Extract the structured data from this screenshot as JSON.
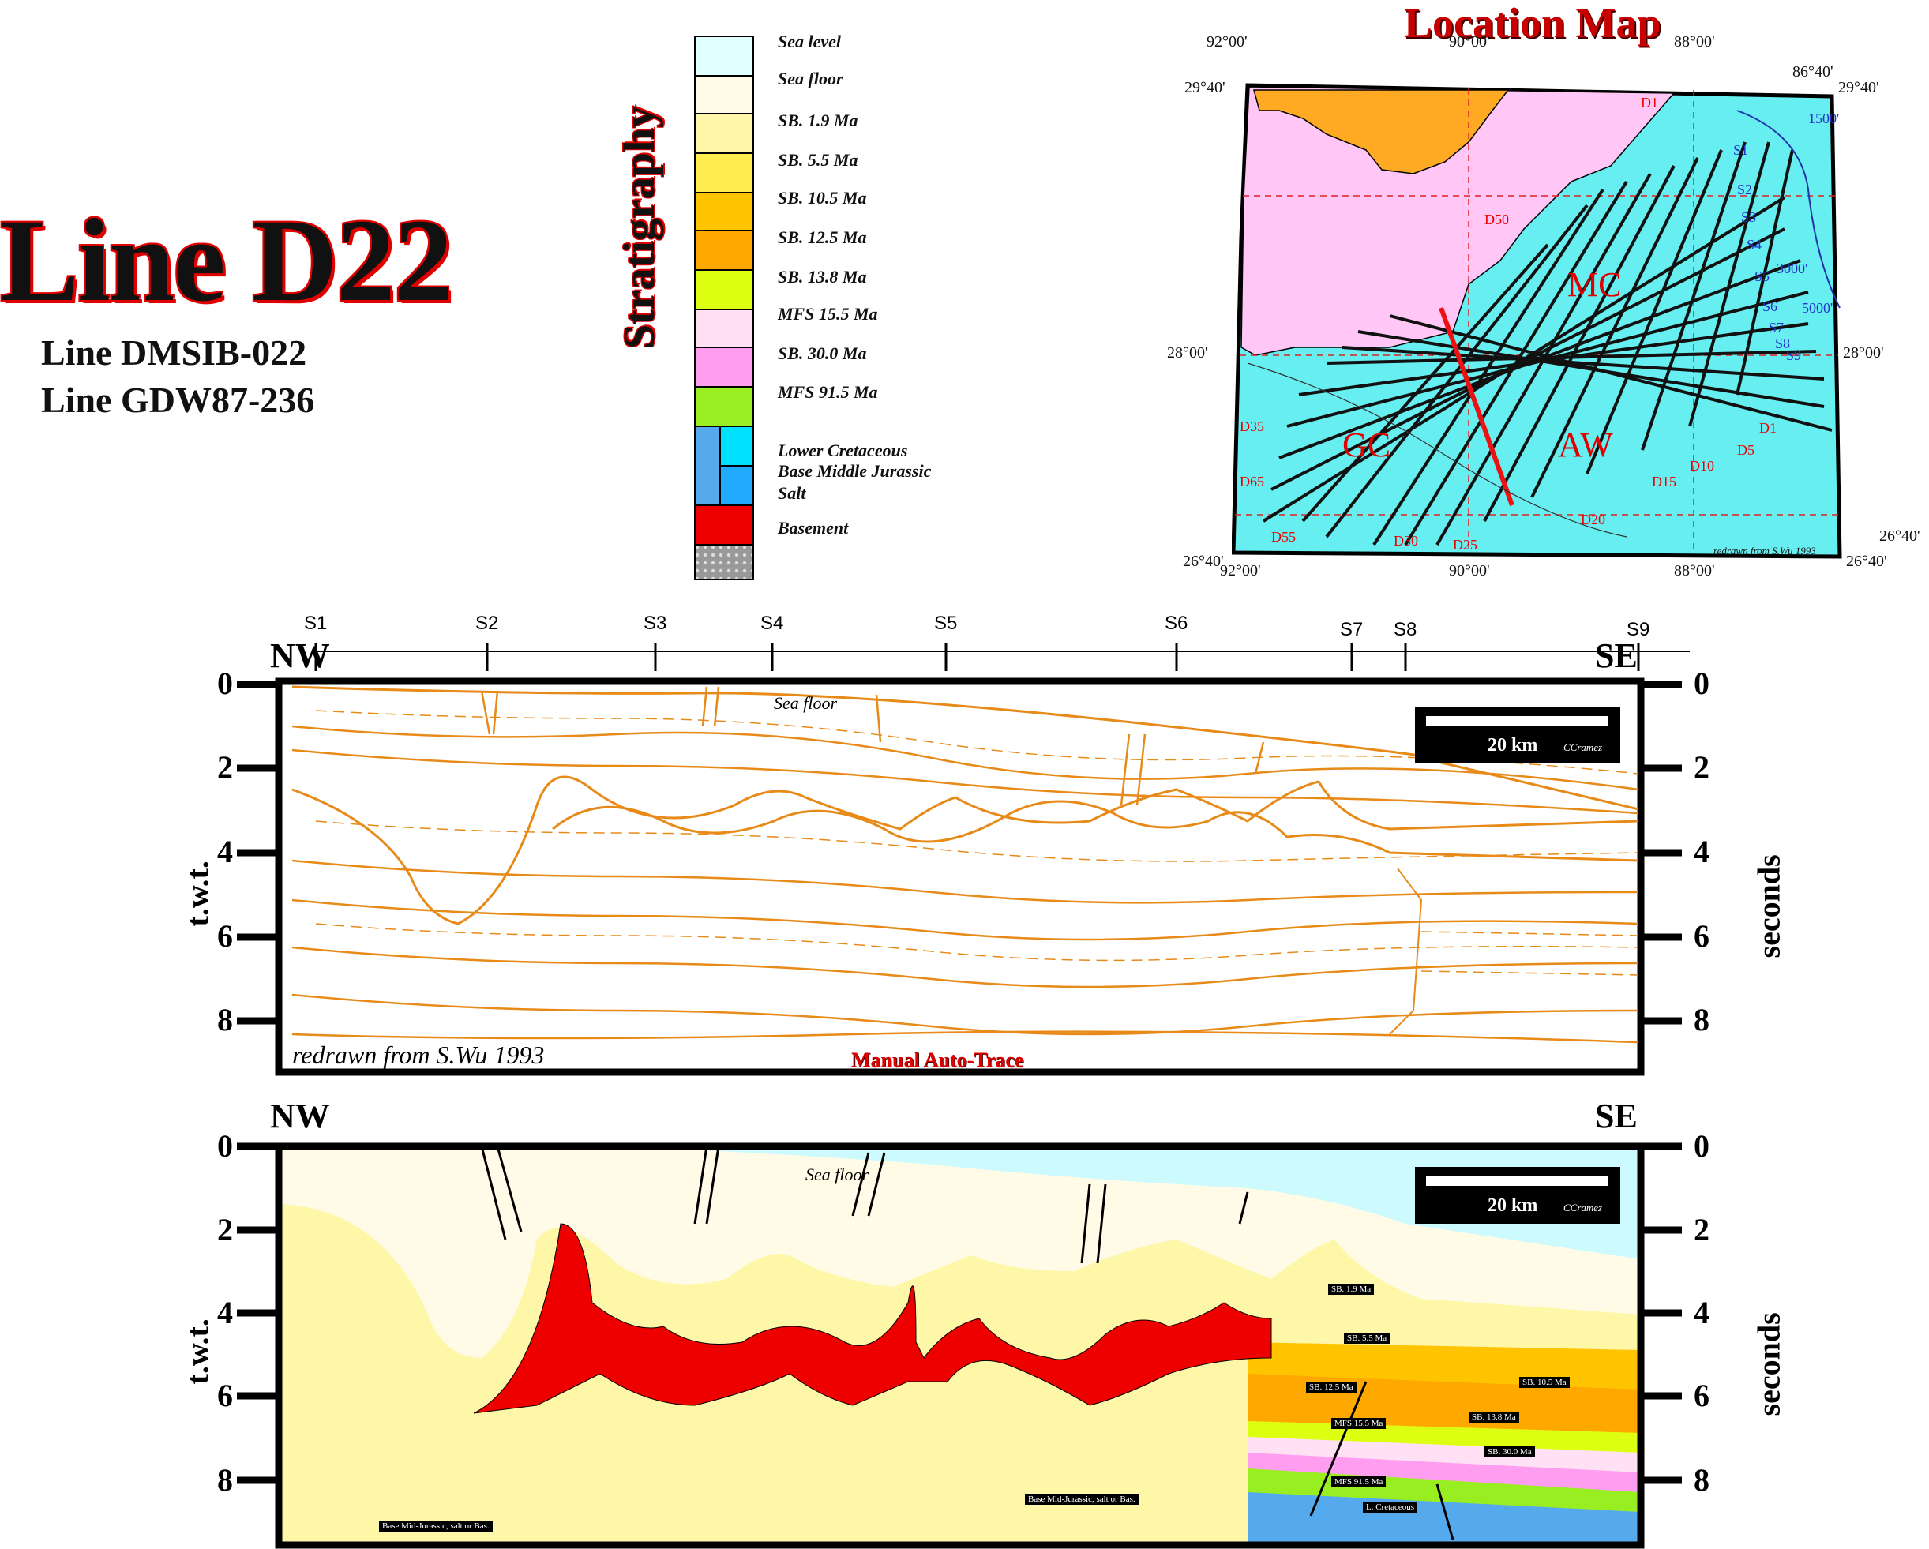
{
  "title": "Line D22",
  "sublines": [
    "Line DMSIB-022",
    "Line GDW87-236"
  ],
  "stratigraphy_label": "Stratigraphy",
  "legend": [
    {
      "label": "Sea level",
      "color": "#e0ffff"
    },
    {
      "label": "Sea floor",
      "color": "#fffbe6"
    },
    {
      "label": "SB. 1.9 Ma",
      "color": "#fff7a8"
    },
    {
      "label": "SB. 5.5 Ma",
      "color": "#ffec4f"
    },
    {
      "label": "SB. 10.5 Ma",
      "color": "#ffc400"
    },
    {
      "label": "SB. 12.5 Ma",
      "color": "#ffa800"
    },
    {
      "label": "SB. 13.8 Ma",
      "color": "#ddff11"
    },
    {
      "label": "MFS 15.5 Ma",
      "color": "#ffe0f5"
    },
    {
      "label": "SB. 30.0 Ma",
      "color": "#ff9ef0"
    },
    {
      "label": "MFS 91.5 Ma",
      "color": "#99ee22"
    },
    {
      "label": "Lower Cretaceous",
      "color": "#55aaee"
    },
    {
      "label": "Base Middle Jurassic",
      "color": "#00e0ff"
    },
    {
      "label": "Salt",
      "color": "#ff0000"
    },
    {
      "label": "Basement",
      "color": "#aaaaaa"
    }
  ],
  "map": {
    "title": "Location Map",
    "coords": {
      "top_left_lon": "92°00'",
      "top_mid_lon": "90°00'",
      "top_right_lon": "88°00'",
      "top_far_lon": "86°40'",
      "lat_top_left": "29°40'",
      "lat_top_right": "29°40'",
      "lat_mid_left": "28°00'",
      "lat_mid_right": "28°00'",
      "lat_bot_left": "26°40'",
      "lat_bot_right": "26°40'",
      "lat_bot_far": "26°40'",
      "bot_left_lon": "92°00'",
      "bot_mid_lon": "90°00'",
      "bot_right_lon": "88°00'"
    },
    "area_labels": [
      "MC",
      "GC",
      "AW"
    ],
    "credit": "redrawn from S.Wu 1993",
    "contours": [
      "1500'",
      "3000'",
      "5000'"
    ],
    "dip_lines": [
      "D1",
      "D5",
      "D10",
      "D15",
      "D20",
      "D25",
      "D30",
      "D35",
      "D50",
      "D55",
      "D65"
    ],
    "strike_lines": [
      "S1",
      "S2",
      "S3",
      "S4",
      "S5",
      "S6",
      "S7",
      "S8",
      "S9"
    ]
  },
  "section": {
    "stations": [
      "S1",
      "S2",
      "S3",
      "S4",
      "S5",
      "S6",
      "S7",
      "S8",
      "S9"
    ],
    "nw": "NW",
    "se": "SE",
    "time_ticks": [
      "0",
      "2",
      "4",
      "6",
      "8"
    ],
    "left_axis_label": "t.w.t.",
    "right_axis_label": "seconds",
    "scale_label": "20 km",
    "scale_credit": "CCramez",
    "sea_floor_label": "Sea floor",
    "top_credit": "redrawn from S.Wu 1993",
    "top_caption": "Manual Auto-Trace"
  },
  "interp_tags": [
    "SB. 1.9 Ma",
    "SB. 5.5 Ma",
    "SB. 12.5 Ma",
    "SB. 10.5 Ma",
    "SB. 13.8 Ma",
    "MFS 15.5 Ma",
    "SB. 30.0 Ma",
    "MFS 91.5 Ma",
    "L. Cretaceous",
    "Base Mid-Jurassic, salt or Bas.",
    "Base Mid-Jurassic, salt or Bas."
  ]
}
